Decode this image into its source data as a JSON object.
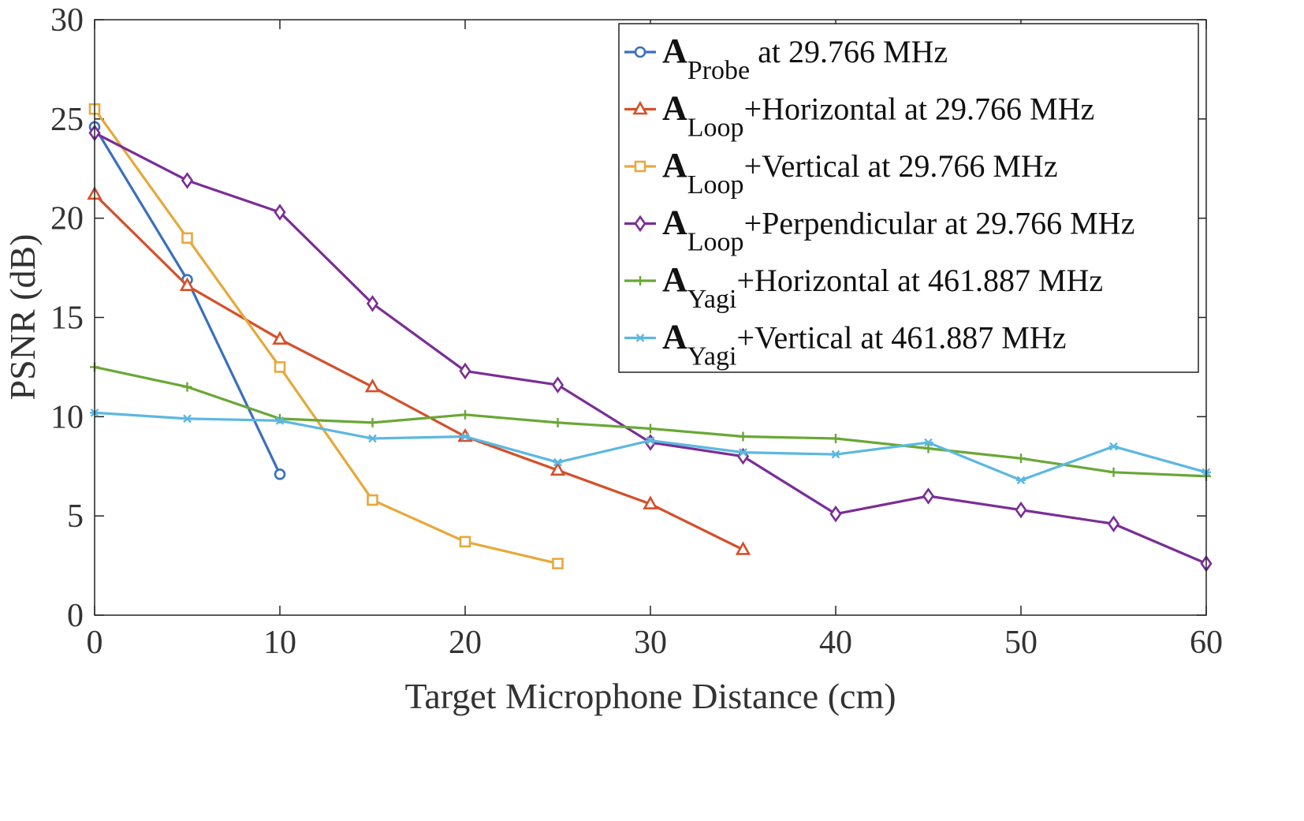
{
  "chart_data": {
    "type": "line",
    "title": "",
    "xlabel": "Target Microphone Distance (cm)",
    "ylabel": "PSNR (dB)",
    "xlim": [
      0,
      60
    ],
    "ylim": [
      0,
      30
    ],
    "xticks": [
      0,
      10,
      20,
      30,
      40,
      50,
      60
    ],
    "yticks": [
      0,
      5,
      10,
      15,
      20,
      25,
      30
    ],
    "grid": false,
    "legend_position": "top-right",
    "series": [
      {
        "name": "A_Probe at 29.766 MHz",
        "legend_main": "A",
        "legend_sub": "Probe",
        "legend_rest": " at 29.766 MHz",
        "color": "#3a6fbf",
        "marker": "circle",
        "x": [
          0,
          5,
          10
        ],
        "y": [
          24.6,
          16.9,
          7.1
        ]
      },
      {
        "name": "A_Loop+Horizontal at 29.766 MHz",
        "legend_main": "A",
        "legend_sub": "Loop",
        "legend_rest": "+Horizontal at 29.766 MHz",
        "color": "#d4502a",
        "marker": "triangle",
        "x": [
          0,
          5,
          10,
          15,
          20,
          25,
          30,
          35
        ],
        "y": [
          21.2,
          16.6,
          13.9,
          11.5,
          9.0,
          7.3,
          5.6,
          3.3
        ]
      },
      {
        "name": "A_Loop+Vertical at 29.766 MHz",
        "legend_main": "A",
        "legend_sub": "Loop",
        "legend_rest": "+Vertical at 29.766 MHz",
        "color": "#e6a93c",
        "marker": "square",
        "x": [
          0,
          5,
          10,
          15,
          20,
          25
        ],
        "y": [
          25.5,
          19.0,
          12.5,
          5.8,
          3.7,
          2.6
        ]
      },
      {
        "name": "A_Loop+Perpendicular at 29.766 MHz",
        "legend_main": "A",
        "legend_sub": "Loop",
        "legend_rest": "+Perpendicular at 29.766 MHz",
        "color": "#7a2e96",
        "marker": "diamond",
        "x": [
          0,
          5,
          10,
          15,
          20,
          25,
          30,
          35,
          40,
          45,
          50,
          55,
          60
        ],
        "y": [
          24.3,
          21.9,
          20.3,
          15.7,
          12.3,
          11.6,
          8.7,
          8.0,
          5.1,
          6.0,
          5.3,
          4.6,
          2.6
        ]
      },
      {
        "name": "A_Yagi+Horizontal at 461.887 MHz",
        "legend_main": "A",
        "legend_sub": "Yagi",
        "legend_rest": "+Horizontal at 461.887 MHz",
        "color": "#6aa736",
        "marker": "plus",
        "x": [
          0,
          5,
          10,
          15,
          20,
          25,
          30,
          35,
          40,
          45,
          50,
          55,
          60
        ],
        "y": [
          12.5,
          11.5,
          9.9,
          9.7,
          10.1,
          9.7,
          9.4,
          9.0,
          8.9,
          8.4,
          7.9,
          7.2,
          7.0
        ]
      },
      {
        "name": "A_Yagi+Vertical at 461.887 MHz",
        "legend_main": "A",
        "legend_sub": "Yagi",
        "legend_rest": "+Vertical at 461.887 MHz",
        "color": "#5cb8e0",
        "marker": "asterisk",
        "x": [
          0,
          5,
          10,
          15,
          20,
          25,
          30,
          35,
          40,
          45,
          50,
          55,
          60
        ],
        "y": [
          10.2,
          9.9,
          9.8,
          8.9,
          9.0,
          7.7,
          8.8,
          8.2,
          8.1,
          8.7,
          6.8,
          8.5,
          7.2
        ]
      }
    ]
  }
}
